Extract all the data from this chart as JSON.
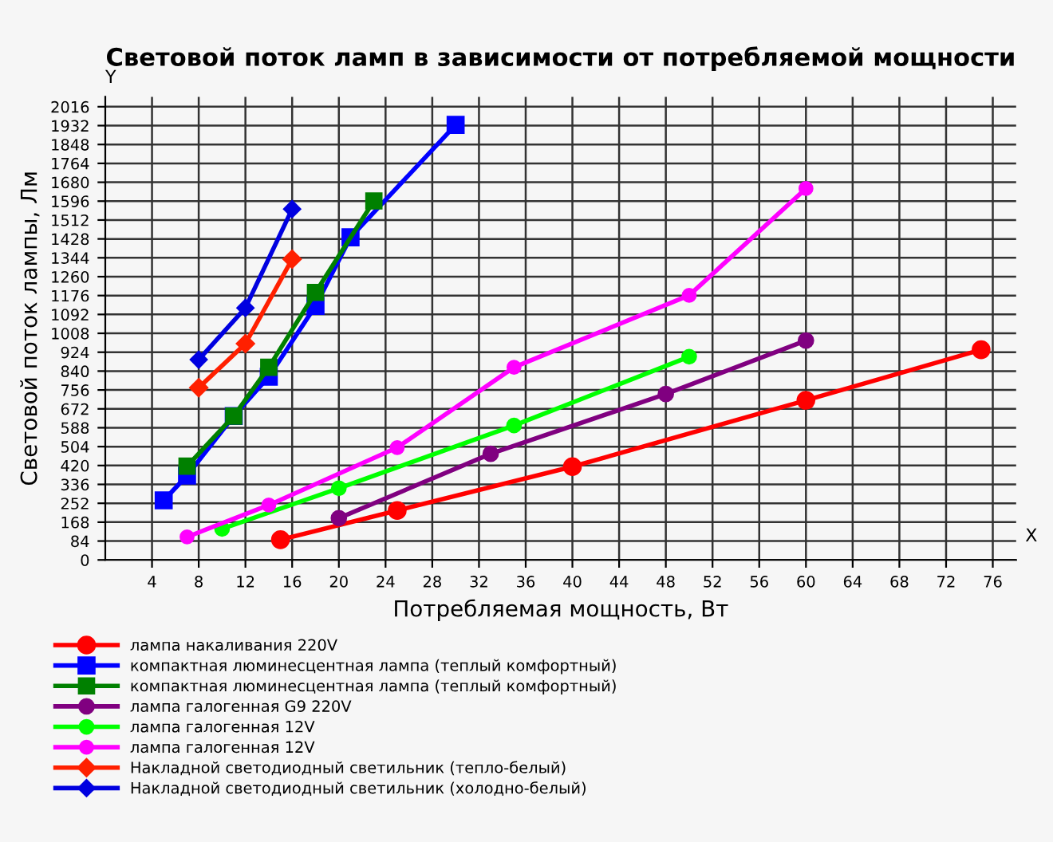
{
  "chart_data": {
    "type": "line",
    "title": "Световой поток ламп в зависимости от потребляемой мощности",
    "xlabel": "Потребляемая мощность, Вт",
    "ylabel": "Световой поток лампы, Лм",
    "annotations": [
      "Y",
      "X"
    ],
    "xlim": [
      0,
      78
    ],
    "xticks": [
      4,
      8,
      12,
      16,
      20,
      24,
      28,
      32,
      36,
      40,
      44,
      48,
      52,
      56,
      60,
      64,
      68,
      72,
      76
    ],
    "ylim": [
      0,
      2060
    ],
    "yticks": [
      0,
      84,
      168,
      252,
      336,
      420,
      504,
      588,
      672,
      756,
      840,
      924,
      1008,
      1092,
      1176,
      1260,
      1344,
      1428,
      1512,
      1596,
      1680,
      1764,
      1848,
      1932,
      2016
    ],
    "grid": true,
    "legend": "bottom",
    "series": [
      {
        "name": "лампа накаливания 220V",
        "color": "#ff0000",
        "marker": "circle",
        "x": [
          15,
          25,
          40,
          60,
          75
        ],
        "values": [
          90,
          220,
          415,
          710,
          935
        ]
      },
      {
        "name": "компактная люминесцентная лампа (теплый комфортный)",
        "color": "#0000ff",
        "marker": "square",
        "x": [
          5,
          7,
          11,
          14,
          18,
          21,
          30
        ],
        "values": [
          265,
          375,
          640,
          815,
          1130,
          1435,
          1935
        ]
      },
      {
        "name": "компактная люминесцентная лампа (теплый комфортный)",
        "color": "#008000",
        "marker": "square",
        "x": [
          7,
          11,
          14,
          18,
          23
        ],
        "values": [
          417,
          640,
          857,
          1190,
          1597
        ]
      },
      {
        "name": "лампа галогенная G9 220V",
        "color": "#800080",
        "marker": "circle",
        "x": [
          20,
          33,
          48,
          60
        ],
        "values": [
          186,
          472,
          738,
          976
        ]
      },
      {
        "name": "лампа галогенная 12V",
        "color": "#00ff00",
        "marker": "circle",
        "x": [
          10,
          20,
          35,
          50
        ],
        "values": [
          138,
          319,
          598,
          904
        ]
      },
      {
        "name": "лампа галогенная 12V",
        "color": "#ff00ff",
        "marker": "circle",
        "x": [
          7,
          14,
          25,
          35,
          50,
          60
        ],
        "values": [
          102,
          244,
          500,
          857,
          1177,
          1652
        ]
      },
      {
        "name": "Накладной светодиодный светильник (тепло-белый)",
        "color": "#ff2000",
        "marker": "diamond",
        "x": [
          8,
          12,
          16
        ],
        "values": [
          766,
          962,
          1338
        ]
      },
      {
        "name": "Накладной светодиодный светильник (холодно-белый)",
        "color": "#0000e0",
        "marker": "diamond",
        "x": [
          8,
          12,
          16
        ],
        "values": [
          891,
          1121,
          1561
        ]
      }
    ]
  }
}
